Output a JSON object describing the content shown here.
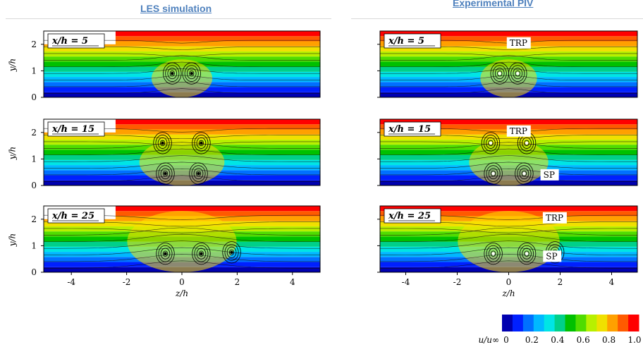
{
  "titles": {
    "left": "LES simulation",
    "right": "Experimental PIV"
  },
  "chart_data": {
    "type": "heatmap",
    "columns": [
      "LES simulation",
      "Experimental PIV"
    ],
    "panels": [
      {
        "label": "x/h = 5"
      },
      {
        "label": "x/h = 15"
      },
      {
        "label": "x/h = 25"
      }
    ],
    "xlabel": "z/h",
    "ylabel": "y/h",
    "xlim": [
      -5,
      5
    ],
    "ylim": [
      0,
      2.5
    ],
    "xticks": [
      "-4",
      "-2",
      "0",
      "2",
      "4"
    ],
    "yticks": [
      "0",
      "1",
      "2"
    ],
    "colorbar": {
      "label": "u/u∞",
      "ticks": [
        "0",
        "0.2",
        "0.4",
        "0.6",
        "0.8",
        "1.0"
      ],
      "colors": [
        "#0000b0",
        "#0020ff",
        "#0070ff",
        "#00b8ff",
        "#00e5e5",
        "#00d08a",
        "#00c000",
        "#50dc00",
        "#b8f000",
        "#f0e000",
        "#ffa000",
        "#ff5a00",
        "#ff0000"
      ]
    },
    "annotations": [
      "TRP",
      "SP"
    ]
  }
}
